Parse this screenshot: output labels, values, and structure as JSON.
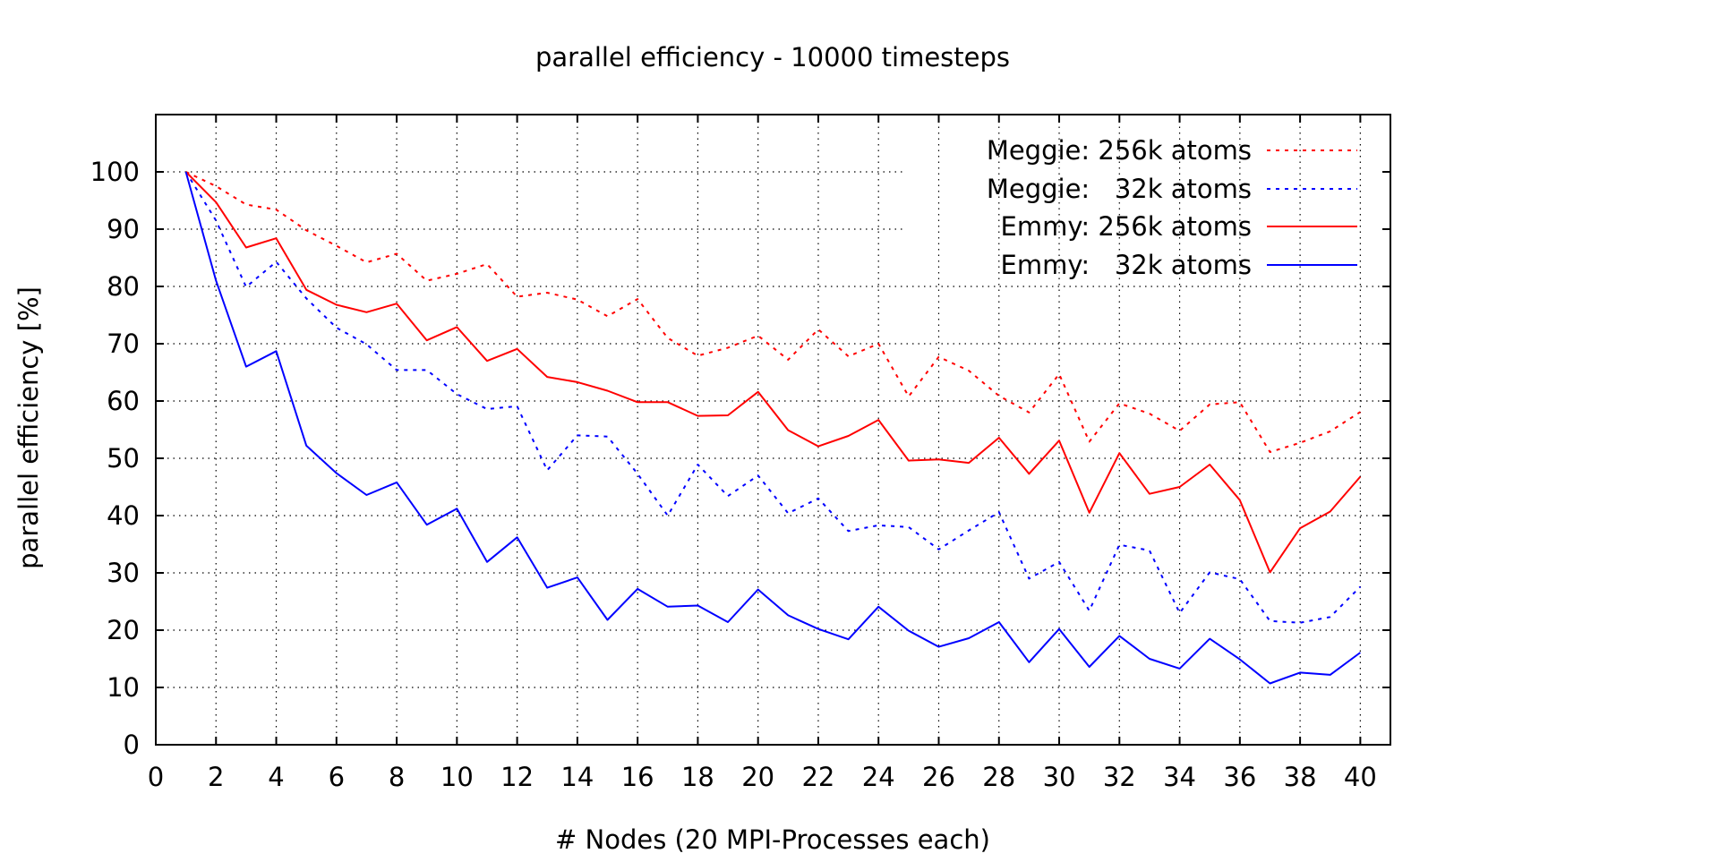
{
  "chart_data": {
    "type": "line",
    "title": "parallel efficiency - 10000 timesteps",
    "xlabel": "# Nodes (20 MPI-Processes each)",
    "ylabel": "parallel efficiency [%]",
    "xlim": [
      0,
      41
    ],
    "ylim": [
      0,
      110
    ],
    "xticks": [
      0,
      2,
      4,
      6,
      8,
      10,
      12,
      14,
      16,
      18,
      20,
      22,
      24,
      26,
      28,
      30,
      32,
      34,
      36,
      38,
      40
    ],
    "yticks": [
      0,
      10,
      20,
      30,
      40,
      50,
      60,
      70,
      80,
      90,
      100
    ],
    "grid": true,
    "legend_position": "top-right",
    "x": [
      1,
      2,
      3,
      4,
      5,
      6,
      7,
      8,
      9,
      10,
      11,
      12,
      13,
      14,
      15,
      16,
      17,
      18,
      19,
      20,
      21,
      22,
      23,
      24,
      25,
      26,
      27,
      28,
      29,
      30,
      31,
      32,
      33,
      34,
      35,
      36,
      37,
      38,
      39,
      40
    ],
    "series": [
      {
        "name": "Meggie: 256k atoms",
        "color": "#ff0000",
        "dash": "dotted",
        "values": [
          100,
          97.5,
          94.3,
          93.4,
          89.8,
          87.1,
          84.2,
          85.7,
          81.0,
          82.2,
          83.9,
          78.2,
          78.9,
          77.7,
          74.8,
          77.8,
          71.0,
          67.9,
          69.3,
          71.4,
          67.2,
          72.5,
          67.8,
          70.0,
          60.8,
          67.7,
          65.3,
          60.9,
          58.0,
          64.7,
          52.9,
          59.6,
          57.8,
          54.8,
          59.4,
          59.8,
          51.1,
          52.7,
          54.7,
          58.1
        ]
      },
      {
        "name": "Meggie:   32k atoms",
        "color": "#0000ff",
        "dash": "dotted",
        "values": [
          100,
          91.5,
          79.9,
          84.3,
          77.9,
          72.8,
          69.9,
          65.4,
          65.4,
          61.2,
          58.6,
          59.1,
          47.9,
          54.0,
          53.8,
          47.3,
          40.0,
          48.9,
          43.4,
          47.0,
          40.4,
          43.0,
          37.3,
          38.3,
          38.0,
          34.1,
          37.4,
          40.6,
          29.0,
          31.9,
          23.4,
          34.9,
          33.9,
          23.0,
          30.1,
          28.9,
          21.6,
          21.3,
          22.3,
          27.6
        ]
      },
      {
        "name": "Emmy: 256k atoms",
        "color": "#ff0000",
        "dash": "solid",
        "values": [
          100,
          94.7,
          86.8,
          88.4,
          79.4,
          76.8,
          75.5,
          77.0,
          70.6,
          72.9,
          67.0,
          69.1,
          64.2,
          63.3,
          61.8,
          59.8,
          59.8,
          57.4,
          57.5,
          61.6,
          54.9,
          52.1,
          53.9,
          56.7,
          49.6,
          49.8,
          49.2,
          53.6,
          47.3,
          53.1,
          40.5,
          50.9,
          43.8,
          45.0,
          48.9,
          42.7,
          30.1,
          37.8,
          40.7,
          46.8
        ]
      },
      {
        "name": "Emmy:   32k atoms",
        "color": "#0000ff",
        "dash": "solid",
        "values": [
          100,
          81.0,
          66.0,
          68.7,
          52.2,
          47.4,
          43.6,
          45.8,
          38.4,
          41.2,
          31.9,
          36.2,
          27.4,
          29.2,
          21.8,
          27.2,
          24.1,
          24.3,
          21.4,
          27.1,
          22.6,
          20.2,
          18.4,
          24.1,
          19.9,
          17.1,
          18.6,
          21.4,
          14.4,
          20.2,
          13.6,
          19.0,
          15.0,
          13.3,
          18.5,
          14.9,
          10.7,
          12.6,
          12.2,
          16.1
        ]
      }
    ]
  }
}
